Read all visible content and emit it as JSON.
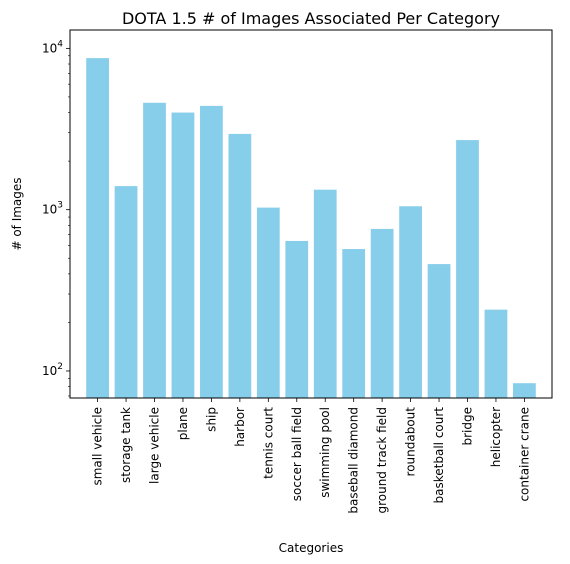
{
  "chart_data": {
    "type": "bar",
    "title": "DOTA 1.5 # of Images Associated Per Category",
    "xlabel": "Categories",
    "ylabel": "# of Images",
    "yscale": "log",
    "ylim": [
      68,
      13000
    ],
    "grid": false,
    "bar_color": "#87CEEB",
    "y_ticks": [
      {
        "value": 100,
        "base": "10",
        "exp": "2"
      },
      {
        "value": 1000,
        "base": "10",
        "exp": "3"
      },
      {
        "value": 10000,
        "base": "10",
        "exp": "4"
      }
    ],
    "categories": [
      "small vehicle",
      "storage tank",
      "large vehicle",
      "plane",
      "ship",
      "harbor",
      "tennis court",
      "soccer ball field",
      "swimming pool",
      "baseball diamond",
      "ground track field",
      "roundabout",
      "basketball court",
      "bridge",
      "helicopter",
      "container crane"
    ],
    "values": [
      8700,
      1400,
      4600,
      4000,
      4400,
      2950,
      1030,
      640,
      1330,
      570,
      760,
      1050,
      460,
      2700,
      240,
      84
    ]
  }
}
